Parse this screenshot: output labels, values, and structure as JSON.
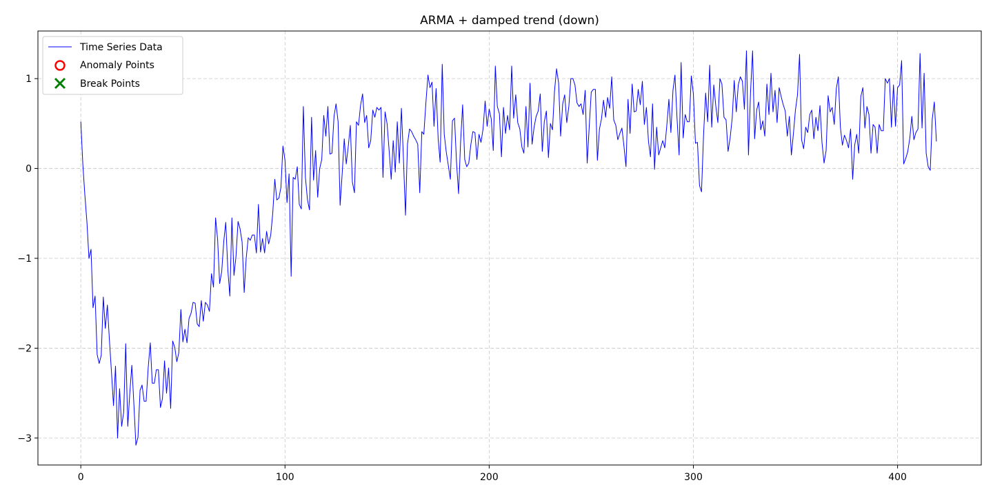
{
  "chart_data": {
    "type": "line",
    "title": "ARMA + damped trend (down)",
    "xlabel": "",
    "ylabel": "",
    "xlim": [
      -21,
      441
    ],
    "ylim": [
      -3.3,
      1.53
    ],
    "xticks": [
      0,
      100,
      200,
      300,
      400
    ],
    "xtick_labels": [
      "0",
      "100",
      "200",
      "300",
      "400"
    ],
    "yticks": [
      -3,
      -2,
      -1,
      0,
      1
    ],
    "ytick_labels": [
      "−3",
      "−2",
      "−1",
      "0",
      "1"
    ],
    "grid": true,
    "legend": {
      "placement": "upper-left",
      "entries": [
        {
          "label": "Time Series Data",
          "marker": "line",
          "color": "#0000ff"
        },
        {
          "label": "Anomaly Points",
          "marker": "circle",
          "color": "#ff0000"
        },
        {
          "label": "Break Points",
          "marker": "x",
          "color": "#008000"
        }
      ]
    },
    "series": [
      {
        "name": "Time Series Data",
        "color": "#0000ff",
        "y": [
          0.52,
          0.05,
          -0.3,
          -0.6,
          -1.0,
          -0.9,
          -1.55,
          -1.42,
          -2.07,
          -2.17,
          -2.08,
          -1.43,
          -1.78,
          -1.52,
          -1.9,
          -2.26,
          -2.64,
          -2.2,
          -3.0,
          -2.45,
          -2.87,
          -2.71,
          -1.95,
          -2.87,
          -2.5,
          -2.19,
          -2.63,
          -3.08,
          -2.99,
          -2.47,
          -2.41,
          -2.59,
          -2.59,
          -2.22,
          -1.94,
          -2.39,
          -2.39,
          -2.24,
          -2.24,
          -2.66,
          -2.56,
          -2.14,
          -2.5,
          -2.22,
          -2.67,
          -1.92,
          -1.99,
          -2.15,
          -2.05,
          -1.57,
          -1.93,
          -1.79,
          -1.94,
          -1.67,
          -1.61,
          -1.49,
          -1.5,
          -1.73,
          -1.76,
          -1.47,
          -1.7,
          -1.49,
          -1.52,
          -1.59,
          -1.17,
          -1.32,
          -0.55,
          -0.79,
          -1.28,
          -1.15,
          -0.81,
          -0.6,
          -1.13,
          -1.42,
          -0.55,
          -1.19,
          -0.98,
          -0.59,
          -0.67,
          -0.82,
          -1.38,
          -1.0,
          -0.77,
          -0.8,
          -0.74,
          -0.74,
          -0.94,
          -0.4,
          -0.93,
          -0.78,
          -0.94,
          -0.7,
          -0.84,
          -0.74,
          -0.5,
          -0.12,
          -0.35,
          -0.33,
          -0.21,
          0.25,
          0.09,
          -0.38,
          -0.06,
          -1.2,
          -0.1,
          -0.12,
          0.02,
          -0.4,
          -0.45,
          0.69,
          -0.1,
          -0.35,
          -0.46,
          0.57,
          -0.13,
          0.2,
          -0.32,
          0.0,
          0.1,
          0.59,
          0.36,
          0.69,
          0.16,
          0.17,
          0.58,
          0.72,
          0.52,
          -0.41,
          -0.06,
          0.33,
          0.05,
          0.25,
          0.48,
          -0.15,
          -0.27,
          0.52,
          0.48,
          0.7,
          0.83,
          0.51,
          0.59,
          0.23,
          0.31,
          0.65,
          0.57,
          0.68,
          0.65,
          0.68,
          -0.1,
          0.63,
          0.5,
          0.2,
          -0.12,
          0.31,
          -0.04,
          0.52,
          0.06,
          0.67,
          0.12,
          -0.52,
          0.27,
          0.44,
          0.41,
          0.36,
          0.32,
          0.27,
          -0.27,
          0.41,
          0.38,
          0.73,
          1.04,
          0.9,
          0.96,
          0.47,
          0.89,
          0.33,
          0.07,
          1.16,
          0.38,
          0.18,
          0.03,
          -0.12,
          0.53,
          0.56,
          0.07,
          -0.28,
          0.29,
          0.71,
          0.1,
          0.02,
          0.06,
          0.26,
          0.41,
          0.4,
          0.1,
          0.38,
          0.29,
          0.44,
          0.75,
          0.47,
          0.66,
          0.55,
          0.2,
          1.14,
          0.69,
          0.61,
          0.13,
          0.68,
          0.39,
          0.59,
          0.43,
          1.14,
          0.56,
          0.82,
          0.51,
          0.44,
          0.24,
          0.17,
          0.69,
          0.24,
          0.95,
          0.27,
          0.46,
          0.58,
          0.64,
          0.83,
          0.19,
          0.52,
          0.64,
          0.12,
          0.5,
          0.43,
          0.86,
          1.11,
          0.95,
          0.36,
          0.72,
          0.82,
          0.51,
          0.69,
          1.0,
          1.0,
          0.93,
          0.73,
          0.69,
          0.72,
          0.6,
          0.87,
          0.06,
          0.47,
          0.85,
          0.88,
          0.88,
          0.09,
          0.44,
          0.55,
          0.76,
          0.57,
          0.79,
          0.67,
          1.02,
          0.54,
          0.48,
          0.32,
          0.39,
          0.45,
          0.25,
          0.02,
          0.77,
          0.39,
          0.94,
          0.63,
          0.64,
          0.88,
          0.71,
          0.97,
          0.49,
          0.68,
          0.3,
          0.13,
          0.72,
          -0.01,
          0.46,
          0.15,
          0.23,
          0.31,
          0.23,
          0.48,
          0.77,
          0.4,
          0.87,
          1.04,
          0.56,
          0.15,
          1.18,
          0.34,
          0.6,
          0.52,
          0.52,
          1.03,
          0.83,
          0.28,
          0.29,
          -0.19,
          -0.26,
          0.38,
          0.84,
          0.52,
          1.15,
          0.46,
          0.93,
          0.69,
          0.51,
          1.0,
          0.94,
          0.57,
          0.54,
          0.19,
          0.34,
          0.56,
          0.98,
          0.63,
          0.93,
          1.02,
          0.97,
          0.66,
          1.31,
          0.15,
          0.85,
          1.31,
          0.33,
          0.65,
          0.74,
          0.43,
          0.53,
          0.36,
          0.94,
          0.6,
          1.06,
          0.63,
          0.87,
          0.51,
          0.9,
          0.8,
          0.71,
          0.64,
          0.36,
          0.58,
          0.15,
          0.39,
          0.65,
          0.82,
          1.27,
          0.32,
          0.22,
          0.46,
          0.4,
          0.6,
          0.65,
          0.33,
          0.57,
          0.42,
          0.7,
          0.29,
          0.06,
          0.2,
          0.81,
          0.63,
          0.68,
          0.49,
          0.89,
          1.02,
          0.46,
          0.26,
          0.37,
          0.31,
          0.23,
          0.44,
          -0.12,
          0.26,
          0.38,
          0.17,
          0.8,
          0.9,
          0.45,
          0.69,
          0.6,
          0.17,
          0.49,
          0.46,
          0.17,
          0.49,
          0.42,
          0.42,
          1.0,
          0.95,
          1.0,
          0.46,
          0.93,
          0.47,
          0.9,
          0.93,
          1.2,
          0.05,
          0.11,
          0.19,
          0.34,
          0.58,
          0.32,
          0.4,
          0.44,
          1.28,
          0.45,
          1.06,
          0.17,
          0.02,
          -0.02,
          0.55,
          0.74,
          0.3
        ]
      }
    ],
    "anomaly_points": [],
    "break_points": []
  }
}
